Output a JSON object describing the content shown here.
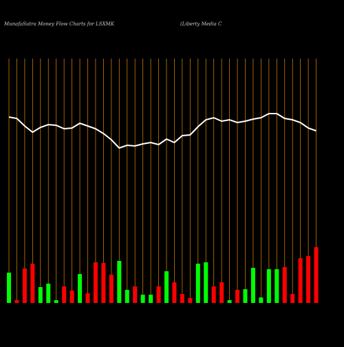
{
  "chart_data": {
    "type": "money-flow",
    "title": "MunafaSutra  Money Flow  Charts for LSXMK",
    "subtitle": "(Liberty Media  C",
    "categories": [
      null,
      null,
      null,
      null,
      null,
      null,
      null,
      null,
      null,
      null,
      null,
      null,
      null,
      null,
      null,
      null,
      null,
      null,
      null,
      null,
      null,
      null,
      null,
      null,
      null,
      null,
      null,
      null,
      null,
      null,
      null,
      null,
      null,
      null,
      null,
      null,
      null,
      null,
      null,
      null
    ],
    "bars": {
      "values": [
        44,
        4,
        50,
        57,
        23,
        28,
        4,
        24,
        18,
        42,
        14,
        59,
        58,
        41,
        61,
        19,
        24,
        12,
        12,
        24,
        46,
        30,
        13,
        7,
        57,
        59,
        24,
        30,
        4,
        19,
        20,
        51,
        8,
        49,
        49,
        52,
        13,
        65,
        68,
        81
      ],
      "colors": [
        "#00ff00",
        "#ff0000",
        "#ff0000",
        "#ff0000",
        "#00ff00",
        "#00ff00",
        "#00ff00",
        "#ff0000",
        "#ff0000",
        "#00ff00",
        "#ff0000",
        "#ff0000",
        "#ff0000",
        "#ff0000",
        "#00ff00",
        "#00ff00",
        "#ff0000",
        "#00ff00",
        "#00ff00",
        "#ff0000",
        "#00ff00",
        "#ff0000",
        "#ff0000",
        "#ff0000",
        "#00ff00",
        "#00ff00",
        "#ff0000",
        "#ff0000",
        "#00ff00",
        "#ff0000",
        "#00ff00",
        "#00ff00",
        "#00ff00",
        "#00ff00",
        "#00ff00",
        "#ff0000",
        "#ff0000",
        "#ff0000",
        "#ff0000",
        "#ff0000"
      ]
    },
    "line": {
      "color": "#ffffff",
      "values": [
        270,
        268,
        257,
        248,
        255,
        259,
        258,
        253,
        254,
        261,
        257,
        253,
        246,
        237,
        225,
        229,
        228,
        231,
        233,
        230,
        238,
        233,
        243,
        244,
        256,
        266,
        269,
        264,
        266,
        262,
        264,
        267,
        269,
        275,
        275,
        268,
        266,
        262,
        254,
        250
      ]
    },
    "ylim": [
      0,
      440
    ],
    "grid_color": "#cc7a00"
  }
}
